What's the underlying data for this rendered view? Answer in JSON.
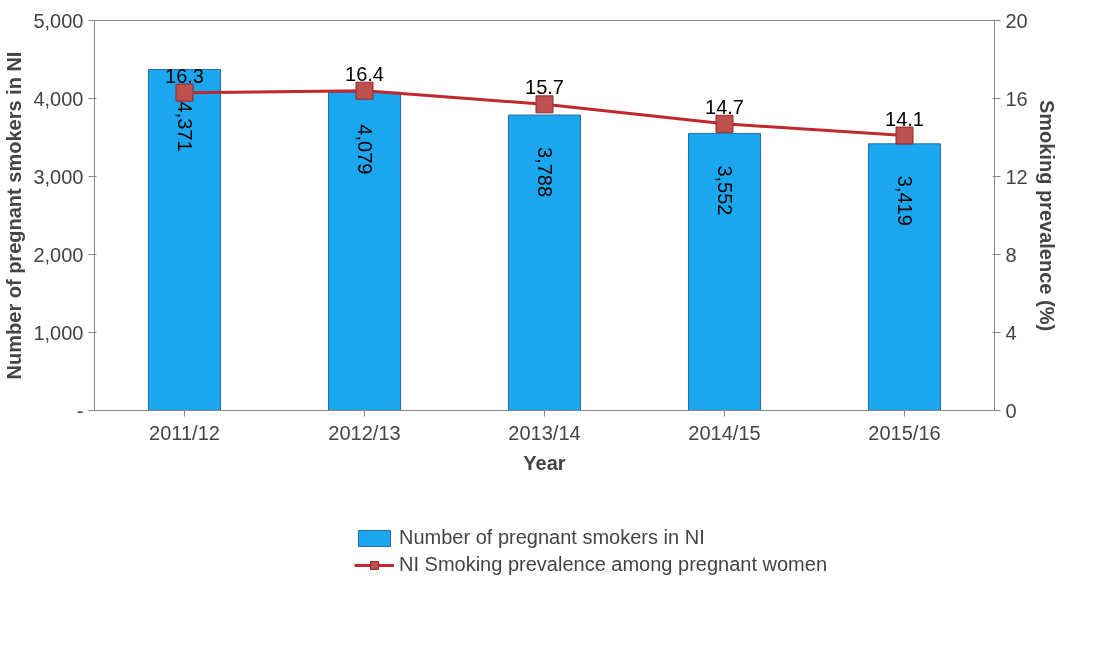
{
  "chart_data": {
    "type": "bar",
    "xlabel": "Year",
    "ylabel": "Number of pregnant smokers in NI",
    "y2label": "Smoking prevalence (%)",
    "categories": [
      "2011/12",
      "2012/13",
      "2013/14",
      "2014/15",
      "2015/16"
    ],
    "series": [
      {
        "name": "Number of pregnant smokers in NI",
        "color": "#1aa7f0",
        "values": [
          4371,
          4079,
          3788,
          3552,
          3419
        ],
        "value_labels": [
          "4,371",
          "4,079",
          "3,788",
          "3,552",
          "3,419"
        ]
      },
      {
        "name": "NI Smoking prevalence among pregnant women",
        "type": "line",
        "axis": "y2",
        "color": "#c0282d",
        "marker": "square",
        "values": [
          16.3,
          16.4,
          15.7,
          14.7,
          14.1
        ],
        "value_labels": [
          "16.3",
          "16.4",
          "15.7",
          "14.7",
          "14.1"
        ]
      }
    ],
    "ylim": [
      0,
      5000
    ],
    "yticks": [
      {
        "value": 0,
        "label": "-"
      },
      {
        "value": 1000,
        "label": "1,000"
      },
      {
        "value": 2000,
        "label": "2,000"
      },
      {
        "value": 3000,
        "label": "3,000"
      },
      {
        "value": 4000,
        "label": "4,000"
      },
      {
        "value": 5000,
        "label": "5,000"
      }
    ],
    "y2lim": [
      0,
      20
    ],
    "y2ticks": [
      0,
      4,
      8,
      12,
      16,
      20
    ],
    "grid": false,
    "legend": "bottom"
  }
}
